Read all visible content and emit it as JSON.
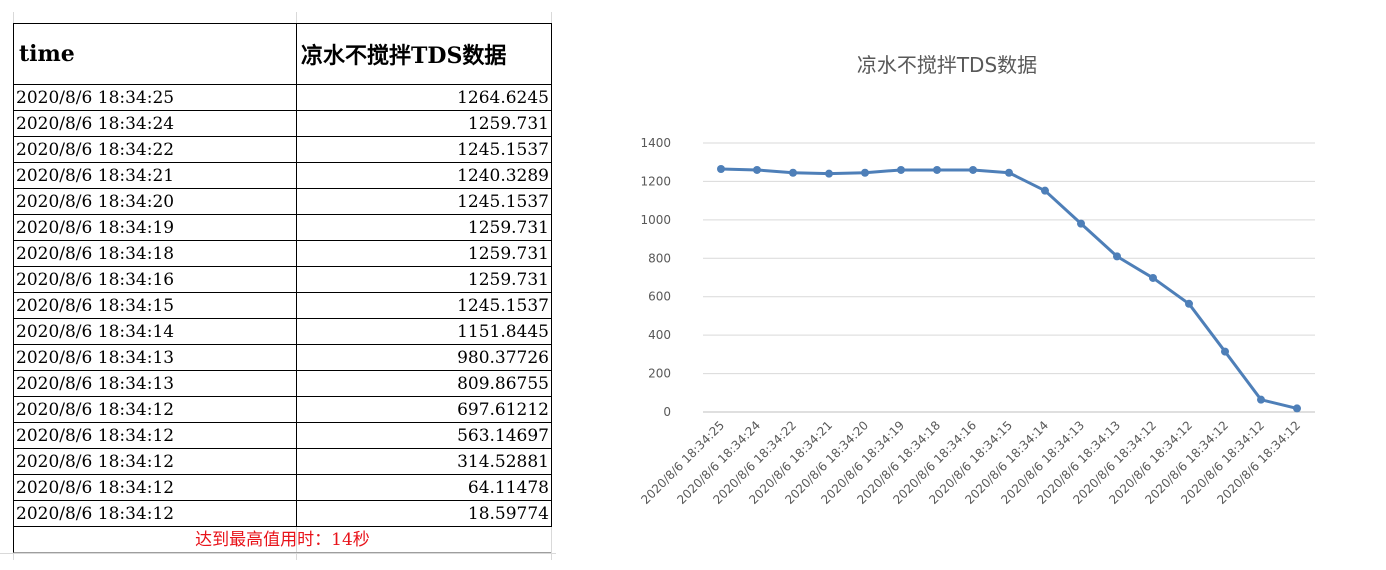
{
  "table": {
    "headers": [
      "time",
      "凉水不搅拌TDS数据"
    ],
    "rows": [
      [
        "2020/8/6 18:34:25",
        "1264.6245"
      ],
      [
        "2020/8/6 18:34:24",
        "1259.731"
      ],
      [
        "2020/8/6 18:34:22",
        "1245.1537"
      ],
      [
        "2020/8/6 18:34:21",
        "1240.3289"
      ],
      [
        "2020/8/6 18:34:20",
        "1245.1537"
      ],
      [
        "2020/8/6 18:34:19",
        "1259.731"
      ],
      [
        "2020/8/6 18:34:18",
        "1259.731"
      ],
      [
        "2020/8/6 18:34:16",
        "1259.731"
      ],
      [
        "2020/8/6 18:34:15",
        "1245.1537"
      ],
      [
        "2020/8/6 18:34:14",
        "1151.8445"
      ],
      [
        "2020/8/6 18:34:13",
        "980.37726"
      ],
      [
        "2020/8/6 18:34:13",
        "809.86755"
      ],
      [
        "2020/8/6 18:34:12",
        "697.61212"
      ],
      [
        "2020/8/6 18:34:12",
        "563.14697"
      ],
      [
        "2020/8/6 18:34:12",
        "314.52881"
      ],
      [
        "2020/8/6 18:34:12",
        "64.11478"
      ],
      [
        "2020/8/6 18:34:12",
        "18.59774"
      ]
    ],
    "summary": "达到最高值用时：14秒"
  },
  "chart_data": {
    "type": "line",
    "title": "凉水不搅拌TDS数据",
    "categories": [
      "2020/8/6 18:34:25",
      "2020/8/6 18:34:24",
      "2020/8/6 18:34:22",
      "2020/8/6 18:34:21",
      "2020/8/6 18:34:20",
      "2020/8/6 18:34:19",
      "2020/8/6 18:34:18",
      "2020/8/6 18:34:16",
      "2020/8/6 18:34:15",
      "2020/8/6 18:34:14",
      "2020/8/6 18:34:13",
      "2020/8/6 18:34:13",
      "2020/8/6 18:34:12",
      "2020/8/6 18:34:12",
      "2020/8/6 18:34:12",
      "2020/8/6 18:34:12",
      "2020/8/6 18:34:12"
    ],
    "series": [
      {
        "values": [
          1264.6245,
          1259.731,
          1245.1537,
          1240.3289,
          1245.1537,
          1259.731,
          1259.731,
          1259.731,
          1245.1537,
          1151.8445,
          980.37726,
          809.86755,
          697.61212,
          563.14697,
          314.52881,
          64.11478,
          18.59774
        ],
        "color": "#4e7fb8"
      }
    ],
    "ylim": [
      0,
      1400
    ],
    "yticks": [
      0,
      200,
      400,
      600,
      800,
      1000,
      1200,
      1400
    ],
    "grid": true,
    "legend": "none"
  }
}
